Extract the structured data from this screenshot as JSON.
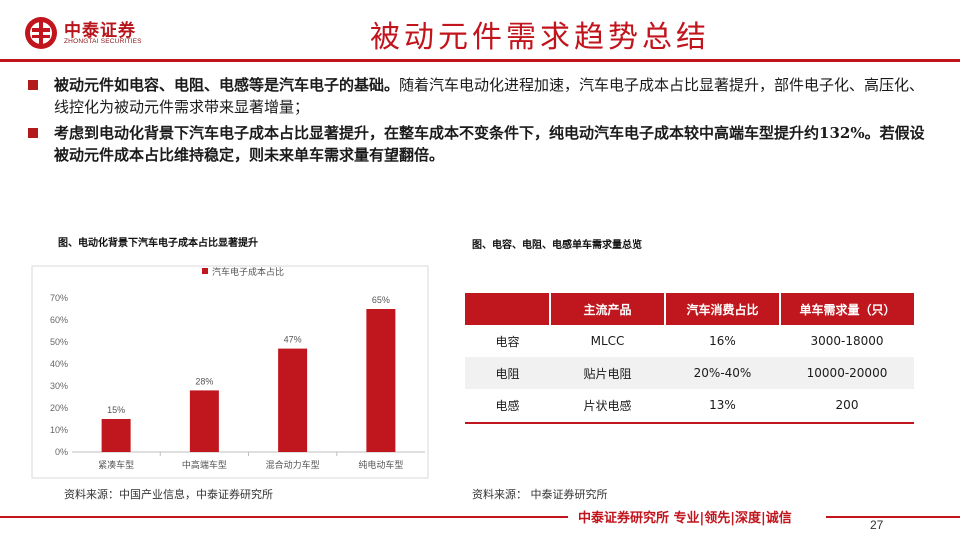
{
  "header": {
    "logo_cn": "中泰证券",
    "logo_en": "ZHONGTAI SECURITIES",
    "title": "被动元件需求趋势总结"
  },
  "bullets": [
    {
      "strong": "被动元件如电容、电阻、电感等是汽车电子的基础。",
      "normal": "随着汽车电动化进程加速，汽车电子成本占比显著提升，部件电子化、高压化、线控化为被动元件需求带来显著增量；"
    },
    {
      "strong": "考虑到电动化背景下汽车电子成本占比显著提升，在整车成本不变条件下，纯电动汽车电子成本较中高端车型提升约132%。若假设被动元件成本占比维持稳定，则未来单车需求量有望翻倍。",
      "normal": ""
    }
  ],
  "left_figure": {
    "title": "图、电动化背景下汽车电子成本占比显著提升",
    "source": "资料来源：中国产业信息，中泰证券研究所"
  },
  "right_figure": {
    "title": "图、电容、电阻、电感单车需求量总览",
    "source": "资料来源： 中泰证券研究所"
  },
  "chart_data": {
    "type": "bar",
    "categories": [
      "紧凑车型",
      "中高端车型",
      "混合动力车型",
      "纯电动车型"
    ],
    "series": [
      {
        "name": "汽车电子成本占比",
        "values": [
          15,
          28,
          47,
          65
        ],
        "color": "#c0161d"
      }
    ],
    "value_labels": [
      "15%",
      "28%",
      "47%",
      "65%"
    ],
    "yticks": [
      "0%",
      "10%",
      "20%",
      "30%",
      "40%",
      "50%",
      "60%",
      "70%"
    ],
    "ylim": [
      0,
      70
    ],
    "legend": "top",
    "grid": false
  },
  "table": {
    "headers": [
      "",
      "主流产品",
      "汽车消费占比",
      "单车需求量（只）"
    ],
    "rows": [
      [
        "电容",
        "MLCC",
        "16%",
        "3000-18000"
      ],
      [
        "电阻",
        "贴片电阻",
        "20%-40%",
        "10000-20000"
      ],
      [
        "电感",
        "片状电感",
        "13%",
        "200"
      ]
    ]
  },
  "footer": {
    "text": "中泰证券研究所 专业|领先|深度|诚信",
    "page": "27"
  },
  "colors": {
    "brand_red": "#c2141c",
    "bar_red": "#c0161d"
  }
}
